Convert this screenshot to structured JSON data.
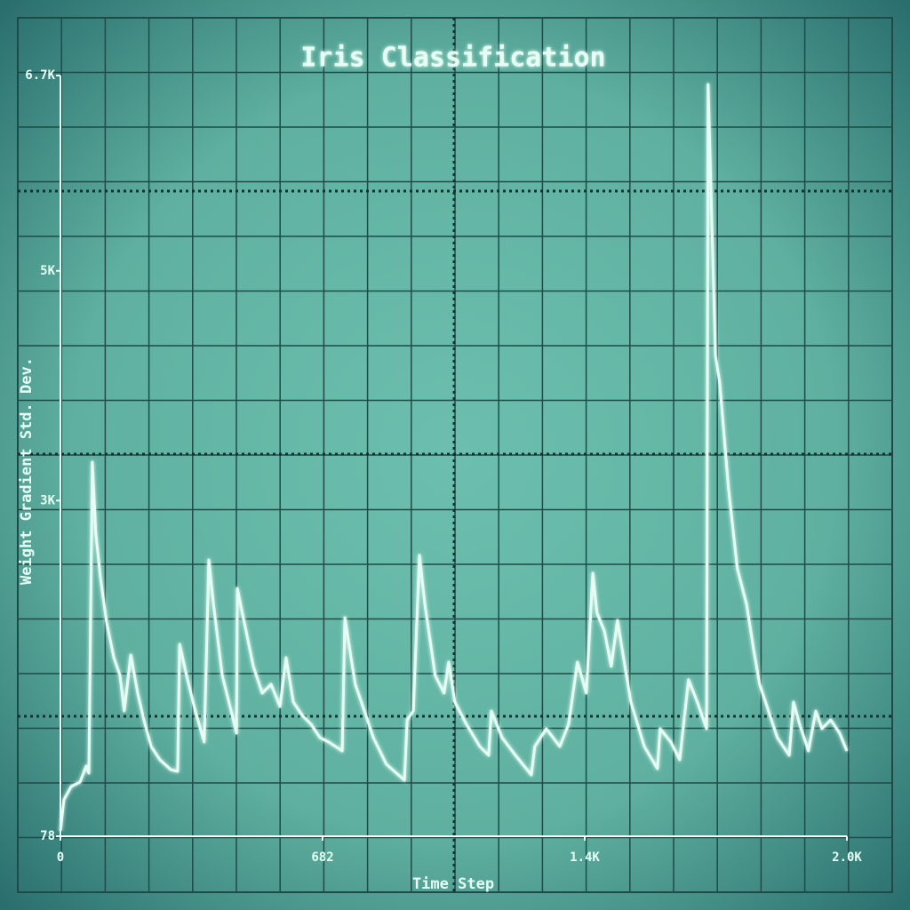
{
  "chart_data": {
    "type": "line",
    "title": "Iris Classification",
    "x_label": "Time Step",
    "y_label": "Weight Gradient Std. Dev.",
    "x": [
      0,
      9,
      28,
      51,
      67,
      74,
      83,
      92,
      104,
      120,
      139,
      155,
      166,
      183,
      201,
      217,
      236,
      259,
      287,
      305,
      310,
      328,
      351,
      374,
      386,
      398,
      421,
      444,
      458,
      460,
      478,
      502,
      525,
      548,
      571,
      587,
      606,
      629,
      652,
      675,
      698,
      733,
      740,
      756,
      767,
      791,
      814,
      848,
      895,
      902,
      918,
      934,
      948,
      975,
      998,
      1010,
      1026,
      1056,
      1091,
      1114,
      1121,
      1149,
      1184,
      1225,
      1234,
      1264,
      1299,
      1322,
      1345,
      1368,
      1385,
      1396,
      1415,
      1433,
      1449,
      1461,
      1484,
      1519,
      1553,
      1560,
      1588,
      1611,
      1634,
      1657,
      1681,
      1685,
      1692,
      1704,
      1715,
      1738,
      1761,
      1785,
      1803,
      1819,
      1842,
      1865,
      1896,
      1907,
      1923,
      1946,
      1965,
      1981,
      2004,
      2027,
      2046
    ],
    "values": [
      124,
      395,
      511,
      550,
      689,
      627,
      3335,
      2716,
      2329,
      1942,
      1633,
      1478,
      1168,
      1656,
      1324,
      1091,
      859,
      743,
      658,
      643,
      1749,
      1478,
      1168,
      898,
      2484,
      2097,
      1478,
      1168,
      975,
      2236,
      1942,
      1556,
      1324,
      1401,
      1207,
      1633,
      1246,
      1130,
      1053,
      937,
      898,
      821,
      1981,
      1633,
      1401,
      1168,
      937,
      705,
      565,
      1091,
      1168,
      2523,
      2097,
      1478,
      1324,
      1594,
      1246,
      1053,
      859,
      782,
      1168,
      937,
      782,
      612,
      859,
      1014,
      859,
      1053,
      1594,
      1324,
      2368,
      2020,
      1865,
      1556,
      1958,
      1710,
      1246,
      859,
      666,
      1014,
      898,
      743,
      1440,
      1246,
      1014,
      6623,
      5733,
      4263,
      4031,
      3103,
      2407,
      2097,
      1710,
      1401,
      1168,
      937,
      782,
      1246,
      1053,
      821,
      1168,
      1014,
      1091,
      975,
      821
    ],
    "color": "#e6fff5",
    "xlim": [
      0,
      2046
    ],
    "xticks": [
      0,
      682,
      {
        "value": 1364,
        "label": "1.4K"
      },
      {
        "value": 2046,
        "label": "2.0K"
      }
    ],
    "ylim": [
      78,
      6700
    ],
    "yticks": [
      78,
      {
        "value": 3000,
        "label": "3K"
      },
      {
        "value": 5000,
        "label": "5K"
      },
      {
        "value": 6700,
        "label": "6.7K"
      }
    ]
  }
}
